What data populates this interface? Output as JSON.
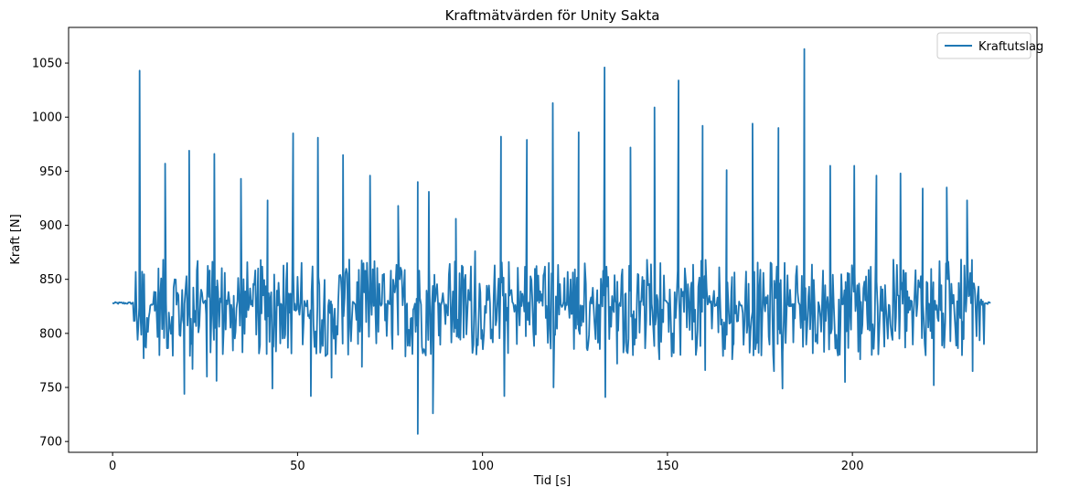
{
  "chart_data": {
    "type": "line",
    "title": "Kraftmätvärden för Unity Sakta",
    "xlabel": "Tid [s]",
    "ylabel": "Kraft [N]",
    "xlim": [
      -11.9,
      249.9
    ],
    "ylim": [
      690,
      1083
    ],
    "xticks": [
      0,
      50,
      100,
      150,
      200
    ],
    "yticks": [
      700,
      750,
      800,
      850,
      900,
      950,
      1000,
      1050
    ],
    "grid": false,
    "legend": {
      "position": "top-right",
      "entries": [
        "Kraftutslag"
      ]
    },
    "series": [
      {
        "name": "Kraftutslag",
        "color": "#1f77b4",
        "peaks": [
          [
            7.3,
            1043
          ],
          [
            14.2,
            957
          ],
          [
            20.7,
            969
          ],
          [
            27.5,
            966
          ],
          [
            34.7,
            943
          ],
          [
            41.9,
            923
          ],
          [
            48.8,
            985
          ],
          [
            55.5,
            981
          ],
          [
            62.3,
            965
          ],
          [
            69.6,
            946
          ],
          [
            77.2,
            918
          ],
          [
            82.5,
            940
          ],
          [
            85.5,
            931
          ],
          [
            92.8,
            906
          ],
          [
            98.0,
            876
          ],
          [
            105.0,
            982
          ],
          [
            112.0,
            979
          ],
          [
            119.0,
            1013
          ],
          [
            126.0,
            986
          ],
          [
            133.0,
            1046
          ],
          [
            140.0,
            972
          ],
          [
            146.5,
            1009
          ],
          [
            153.0,
            1034
          ],
          [
            159.5,
            992
          ],
          [
            166.0,
            951
          ],
          [
            173.0,
            994
          ],
          [
            180.0,
            990
          ],
          [
            187.0,
            1063
          ],
          [
            194.0,
            955
          ],
          [
            200.5,
            955
          ],
          [
            206.5,
            946
          ],
          [
            213.0,
            948
          ],
          [
            219.0,
            934
          ],
          [
            225.5,
            935
          ],
          [
            231.0,
            923
          ]
        ],
        "troughs": [
          [
            8.4,
            777
          ],
          [
            19.4,
            744
          ],
          [
            21.6,
            767
          ],
          [
            25.5,
            760
          ],
          [
            28.1,
            756
          ],
          [
            43.2,
            749
          ],
          [
            53.6,
            742
          ],
          [
            59.2,
            759
          ],
          [
            67.4,
            769
          ],
          [
            82.5,
            707
          ],
          [
            86.6,
            726
          ],
          [
            105.9,
            742
          ],
          [
            119.2,
            750
          ],
          [
            133.2,
            741
          ],
          [
            136.4,
            772
          ],
          [
            147.8,
            776
          ],
          [
            160.2,
            766
          ],
          [
            167.5,
            776
          ],
          [
            178.8,
            765
          ],
          [
            181.1,
            749
          ],
          [
            198.0,
            755
          ],
          [
            202.1,
            776
          ],
          [
            222.0,
            752
          ],
          [
            232.5,
            765
          ]
        ],
        "baseline": 828,
        "x_start": 0,
        "x_end": 237.5
      }
    ]
  }
}
